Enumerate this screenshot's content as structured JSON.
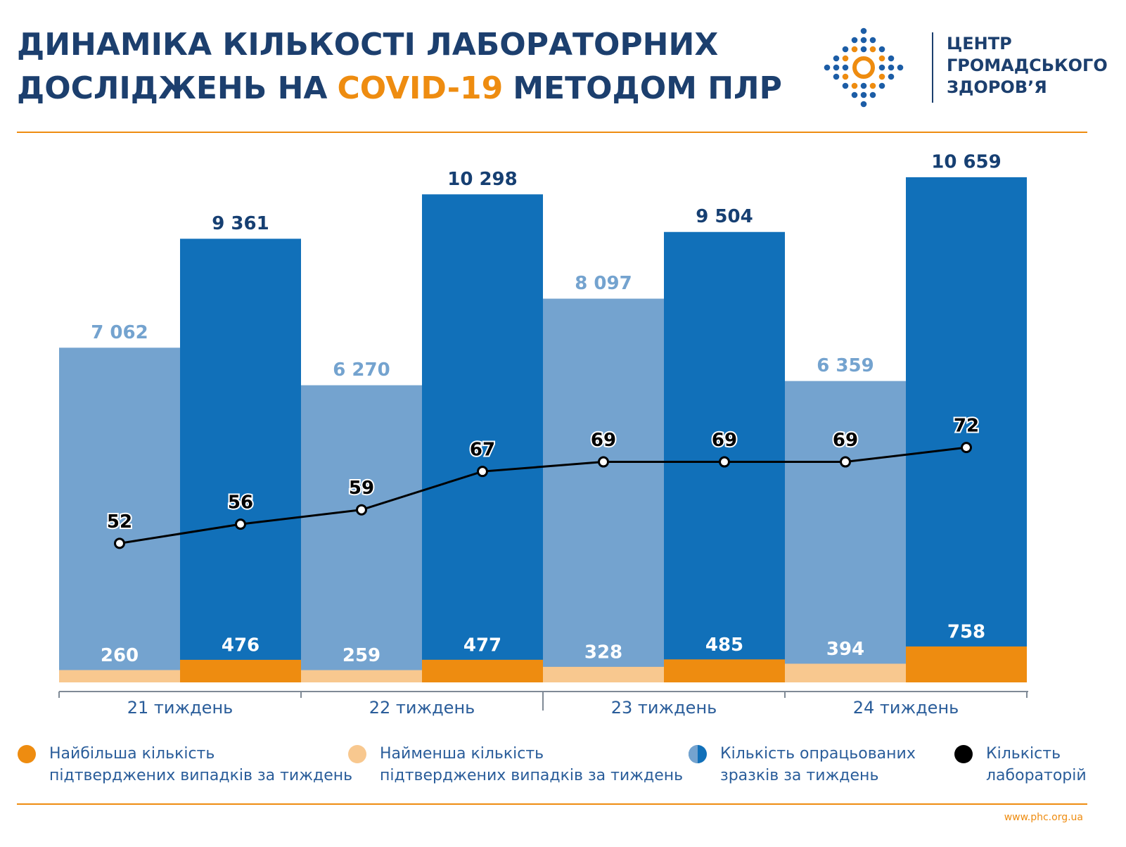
{
  "chart_data": {
    "type": "bar",
    "title": [
      "ДИНАМІКА КІЛЬКОСТІ ЛАБОРАТОРНИХ",
      "ДОСЛІДЖЕНЬ НА",
      "COVID-19",
      "МЕТОДОМ ПЛР"
    ],
    "organization": [
      "ЦЕНТР",
      "ГРОМАДСЬКОГО",
      "ЗДОРОВ’Я"
    ],
    "source": "www.phc.org.ua",
    "categories": [
      "21 тиждень",
      "22 тиждень",
      "23 тиждень",
      "24 тиждень"
    ],
    "ylim": [
      0,
      11430
    ],
    "y2lim": [
      23,
      136
    ],
    "series": [
      {
        "name": "Найбільша кількість\nпідтверджених випадків за тиждень",
        "color": "#ee8c10",
        "values": [
          476,
          477,
          485,
          758
        ]
      },
      {
        "name": "Найменша кількість\nпідтверджених випадків за тиждень",
        "color": "#f8c88f",
        "values": [
          260,
          259,
          328,
          394
        ]
      },
      {
        "name": "Кількість опрацьованих\nзразків за тиждень",
        "colors": [
          "#74a3cf",
          "#1170b9"
        ],
        "values": [
          [
            7062,
            9361
          ],
          [
            6270,
            10298
          ],
          [
            8097,
            9504
          ],
          [
            6359,
            10659
          ]
        ],
        "value_labels": [
          [
            "7 062",
            "9 361"
          ],
          [
            "6 270",
            "10 298"
          ],
          [
            "8 097",
            "9 504"
          ],
          [
            "6 359",
            "10 659"
          ]
        ]
      },
      {
        "name": "Кількість\nлабораторій",
        "color": "#000000",
        "axis": "y2",
        "type": "line",
        "values": [
          [
            52,
            56
          ],
          [
            59,
            67
          ],
          [
            69,
            69
          ],
          [
            69,
            72
          ]
        ]
      }
    ]
  }
}
